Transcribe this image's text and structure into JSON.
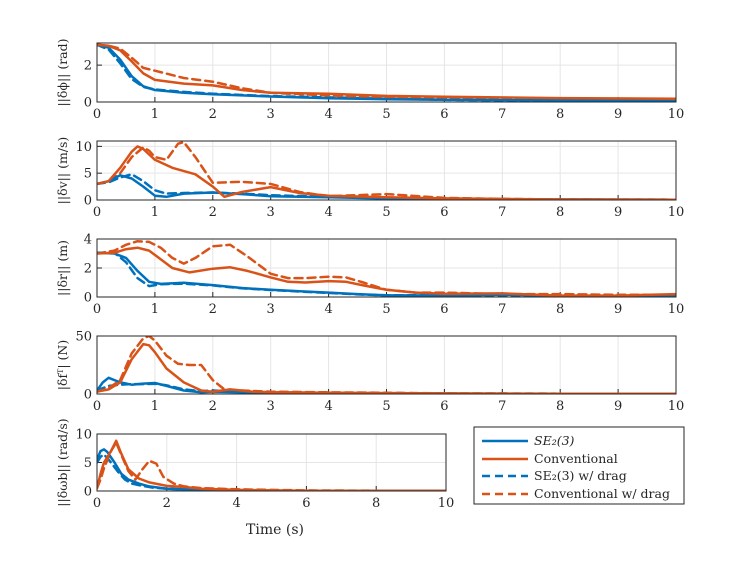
{
  "colors": {
    "se23": "#0072BD",
    "conventional": "#D95319",
    "axis": "#262626",
    "grid": "#E5E5E5"
  },
  "xlabel": "Time (s)",
  "legend": {
    "placement": "bottom-right",
    "entries": [
      {
        "label": "SE₂(3)",
        "color": "#0072BD",
        "dash": false
      },
      {
        "label": "Conventional",
        "color": "#D95319",
        "dash": false
      },
      {
        "label": "SE₂(3) w/ drag",
        "color": "#0072BD",
        "dash": true
      },
      {
        "label": "Conventional w/ drag",
        "color": "#D95319",
        "dash": true
      }
    ]
  },
  "chart_data": [
    {
      "type": "line",
      "ylabel": "||δϕ|| (rad)",
      "xlim": [
        0,
        10
      ],
      "ylim": [
        0,
        3.2
      ],
      "xticks": [
        "0",
        "1",
        "2",
        "3",
        "4",
        "5",
        "6",
        "7",
        "8",
        "9",
        "10"
      ],
      "yticks": [
        "0",
        "2"
      ],
      "ytickvals": [
        0,
        2
      ],
      "series": [
        {
          "name": "SE2(3)",
          "x": [
            0,
            0.2,
            0.4,
            0.6,
            0.8,
            1.0,
            1.5,
            2.0,
            3.0,
            4.0,
            5.0,
            6.0,
            8.0,
            10.0
          ],
          "y": [
            3.1,
            2.95,
            2.3,
            1.4,
            0.85,
            0.65,
            0.5,
            0.42,
            0.3,
            0.2,
            0.15,
            0.12,
            0.09,
            0.07
          ]
        },
        {
          "name": "Conventional",
          "x": [
            0,
            0.2,
            0.4,
            0.6,
            0.8,
            1.0,
            1.5,
            2.0,
            2.5,
            3.0,
            4.0,
            5.0,
            6.0,
            8.0,
            10.0
          ],
          "y": [
            3.1,
            3.05,
            2.8,
            2.2,
            1.55,
            1.2,
            1.0,
            0.9,
            0.65,
            0.5,
            0.45,
            0.33,
            0.28,
            0.21,
            0.18
          ]
        },
        {
          "name": "SE2(3) w/ drag",
          "x": [
            0,
            0.2,
            0.4,
            0.6,
            0.8,
            1.0,
            1.5,
            2.0,
            3.0,
            4.0,
            5.0,
            6.0,
            8.0,
            10.0
          ],
          "y": [
            3.1,
            2.85,
            2.1,
            1.25,
            0.82,
            0.68,
            0.55,
            0.45,
            0.32,
            0.25,
            0.18,
            0.12,
            0.07,
            0.05
          ]
        },
        {
          "name": "Conventional w/ drag",
          "x": [
            0,
            0.2,
            0.4,
            0.6,
            0.8,
            1.0,
            1.5,
            2.0,
            2.5,
            3.0,
            4.0,
            5.0,
            6.0,
            8.0,
            10.0
          ],
          "y": [
            3.1,
            3.05,
            2.9,
            2.4,
            1.85,
            1.7,
            1.3,
            1.1,
            0.75,
            0.5,
            0.35,
            0.25,
            0.18,
            0.12,
            0.1
          ]
        }
      ]
    },
    {
      "type": "line",
      "ylabel": "||δv|| (m/s)",
      "xlim": [
        0,
        10
      ],
      "ylim": [
        0,
        11
      ],
      "xticks": [
        "0",
        "1",
        "2",
        "3",
        "4",
        "5",
        "6",
        "7",
        "8",
        "9",
        "10"
      ],
      "yticks": [
        "0",
        "5",
        "10"
      ],
      "ytickvals": [
        0,
        5,
        10
      ],
      "series": [
        {
          "name": "SE2(3)",
          "x": [
            0,
            0.2,
            0.4,
            0.6,
            0.8,
            1.0,
            1.2,
            1.5,
            2.0,
            2.5,
            3.0,
            4.0,
            5.0,
            6.0,
            8.0,
            10.0
          ],
          "y": [
            3,
            3.5,
            4.6,
            4,
            2.5,
            0.8,
            0.6,
            1.2,
            1.4,
            1.1,
            0.7,
            0.5,
            0.3,
            0.2,
            0.1,
            0.05
          ]
        },
        {
          "name": "Conventional",
          "x": [
            0,
            0.2,
            0.4,
            0.6,
            0.7,
            0.8,
            1.0,
            1.3,
            1.7,
            2.0,
            2.2,
            2.5,
            3.0,
            3.5,
            4.0,
            5.0,
            6.0,
            7.0,
            8.0,
            10.0
          ],
          "y": [
            3,
            3.5,
            6,
            9,
            10,
            9.5,
            7.5,
            6,
            4.8,
            2.5,
            0.6,
            1.5,
            2.4,
            1.3,
            0.8,
            0.5,
            0.3,
            0.2,
            0.1,
            0.05
          ]
        },
        {
          "name": "SE2(3) w/ drag",
          "x": [
            0,
            0.2,
            0.4,
            0.6,
            0.8,
            1.0,
            1.2,
            1.5,
            2.0,
            2.5,
            3.0,
            4.0,
            5.0,
            6.0,
            8.0,
            10.0
          ],
          "y": [
            3,
            3.3,
            4.2,
            4.8,
            3.5,
            1.8,
            1.2,
            1.3,
            1.4,
            1.2,
            0.9,
            0.6,
            0.4,
            0.2,
            0.1,
            0.05
          ]
        },
        {
          "name": "Conventional w/ drag",
          "x": [
            0,
            0.2,
            0.4,
            0.6,
            0.8,
            0.9,
            1.0,
            1.2,
            1.4,
            1.5,
            1.7,
            2.0,
            2.5,
            3.0,
            3.5,
            4.0,
            5.0,
            6.0,
            7.0,
            8.0,
            10.0
          ],
          "y": [
            3,
            3.5,
            5,
            8,
            9.8,
            9.2,
            8,
            7.5,
            10.5,
            10.8,
            8,
            3.2,
            3.4,
            3,
            1.5,
            0.7,
            1.1,
            0.4,
            0.2,
            0.1,
            0.05
          ]
        }
      ]
    },
    {
      "type": "line",
      "ylabel": "||δr|| (m)",
      "xlim": [
        0,
        10
      ],
      "ylim": [
        0,
        4
      ],
      "xticks": [
        "0",
        "1",
        "2",
        "3",
        "4",
        "5",
        "6",
        "7",
        "8",
        "9",
        "10"
      ],
      "yticks": [
        "0",
        "2",
        "4"
      ],
      "ytickvals": [
        0,
        2,
        4
      ],
      "series": [
        {
          "name": "SE2(3)",
          "x": [
            0,
            0.3,
            0.5,
            0.7,
            0.9,
            1.1,
            1.5,
            2.0,
            2.5,
            3.0,
            3.5,
            4.0,
            4.5,
            5.0,
            6.0,
            7.0,
            8.0,
            9.0,
            10.0
          ],
          "y": [
            3.05,
            3,
            2.7,
            1.8,
            1.05,
            0.9,
            0.98,
            0.82,
            0.62,
            0.5,
            0.4,
            0.3,
            0.2,
            0.12,
            0.1,
            0.16,
            0.08,
            0.05,
            0.08
          ]
        },
        {
          "name": "Conventional",
          "x": [
            0,
            0.3,
            0.5,
            0.7,
            0.9,
            1.1,
            1.3,
            1.6,
            2.0,
            2.3,
            2.6,
            3.0,
            3.3,
            3.6,
            4.0,
            4.3,
            4.6,
            5.0,
            5.5,
            6.0,
            7.0,
            8.0,
            9.0,
            10.0
          ],
          "y": [
            3,
            3.05,
            3.3,
            3.4,
            3.2,
            2.6,
            2,
            1.7,
            1.95,
            2.05,
            1.8,
            1.35,
            1.05,
            1,
            1.1,
            1.05,
            0.8,
            0.5,
            0.3,
            0.22,
            0.25,
            0.1,
            0.1,
            0.2
          ]
        },
        {
          "name": "SE2(3) w/ drag",
          "x": [
            0,
            0.3,
            0.5,
            0.7,
            0.9,
            1.1,
            1.5,
            2.0,
            2.5,
            3.0,
            3.5,
            4.0,
            4.5,
            5.0,
            6.0,
            7.0,
            8.0,
            9.0,
            10.0
          ],
          "y": [
            3.05,
            3.05,
            2.4,
            1.3,
            0.75,
            0.88,
            0.92,
            0.8,
            0.6,
            0.48,
            0.38,
            0.28,
            0.18,
            0.12,
            0.12,
            0.12,
            0.1,
            0.1,
            0.1
          ]
        },
        {
          "name": "Conventional w/ drag",
          "x": [
            0,
            0.3,
            0.5,
            0.7,
            0.9,
            1.1,
            1.3,
            1.5,
            1.7,
            2.0,
            2.3,
            2.6,
            3.0,
            3.3,
            3.6,
            4.0,
            4.3,
            4.6,
            5.0,
            5.5,
            6.0,
            7.0,
            8.0,
            9.0,
            10.0
          ],
          "y": [
            3,
            3.2,
            3.6,
            3.85,
            3.8,
            3.4,
            2.7,
            2.3,
            2.7,
            3.5,
            3.6,
            2.8,
            1.6,
            1.3,
            1.3,
            1.4,
            1.35,
            1,
            0.5,
            0.3,
            0.3,
            0.2,
            0.2,
            0.15,
            0.15
          ]
        }
      ]
    },
    {
      "type": "line",
      "ylabel": "|δfᵀ| (N)",
      "xlim": [
        0,
        10
      ],
      "ylim": [
        0,
        50
      ],
      "xticks": [
        "0",
        "1",
        "2",
        "3",
        "4",
        "5",
        "6",
        "7",
        "8",
        "9",
        "10"
      ],
      "yticks": [
        "0",
        "50"
      ],
      "ytickvals": [
        0,
        50
      ],
      "series": [
        {
          "name": "SE2(3)",
          "x": [
            0,
            0.1,
            0.2,
            0.4,
            0.6,
            0.8,
            1.0,
            1.2,
            1.5,
            1.8,
            2.0,
            2.5,
            3.0,
            4.0,
            5.0,
            6.0,
            8.0,
            10.0
          ],
          "y": [
            3,
            10,
            14,
            10,
            8,
            9,
            9.5,
            7,
            3,
            1.5,
            2,
            1.5,
            1,
            0.8,
            0.5,
            0.3,
            0.2,
            0.1
          ]
        },
        {
          "name": "Conventional",
          "x": [
            0,
            0.2,
            0.4,
            0.6,
            0.8,
            0.9,
            1.0,
            1.2,
            1.5,
            1.8,
            2.0,
            2.3,
            2.7,
            3.0,
            4.0,
            5.0,
            6.0,
            8.0,
            10.0
          ],
          "y": [
            2,
            4,
            10,
            30,
            43,
            42,
            36,
            22,
            10,
            3,
            2,
            4,
            2,
            1.5,
            1,
            0.8,
            0.5,
            0.3,
            0.2
          ]
        },
        {
          "name": "SE2(3) w/ drag",
          "x": [
            0,
            0.2,
            0.4,
            0.6,
            0.8,
            1.0,
            1.2,
            1.5,
            1.8,
            2.0,
            2.5,
            3.0,
            4.0,
            5.0,
            6.0,
            8.0,
            10.0
          ],
          "y": [
            3,
            7,
            8,
            8.5,
            8.5,
            8.8,
            7.5,
            4,
            2.5,
            3,
            2,
            1.5,
            1,
            0.8,
            0.5,
            0.3,
            0.2
          ]
        },
        {
          "name": "Conventional w/ drag",
          "x": [
            0,
            0.2,
            0.4,
            0.6,
            0.8,
            0.9,
            1.0,
            1.2,
            1.4,
            1.6,
            1.8,
            2.0,
            2.2,
            2.5,
            3.0,
            4.0,
            5.0,
            6.0,
            8.0,
            10.0
          ],
          "y": [
            2,
            5,
            12,
            35,
            48,
            50,
            46,
            33,
            26,
            25,
            25,
            12,
            4,
            3,
            2,
            1.5,
            1,
            0.5,
            0.3,
            0.2
          ]
        }
      ]
    },
    {
      "type": "line",
      "ylabel": "||δωb|| (rad/s)",
      "xlim": [
        0,
        10
      ],
      "ylim": [
        0,
        10
      ],
      "xticks": [
        "0",
        "2",
        "4",
        "6",
        "8",
        "10"
      ],
      "yticks": [
        "0",
        "5",
        "10"
      ],
      "ytickvals": [
        0,
        5,
        10
      ],
      "series": [
        {
          "name": "SE2(3)",
          "x": [
            0,
            0.1,
            0.2,
            0.3,
            0.5,
            0.7,
            0.9,
            1.2,
            1.5,
            2.0,
            3.0,
            4.0,
            5.0,
            6.0,
            8.0,
            10.0
          ],
          "y": [
            5.5,
            7,
            7.3,
            6.8,
            5,
            3,
            2,
            1.3,
            0.8,
            0.4,
            0.2,
            0.1,
            0.05,
            0.03,
            0.02,
            0.01
          ]
        },
        {
          "name": "Conventional",
          "x": [
            0,
            0.1,
            0.2,
            0.4,
            0.55,
            0.7,
            0.9,
            1.2,
            1.5,
            2.0,
            2.5,
            3.0,
            4.0,
            5.0,
            6.0,
            8.0,
            10.0
          ],
          "y": [
            0.5,
            3,
            5,
            7,
            8.8,
            6.5,
            3.8,
            2.2,
            1.5,
            0.9,
            0.7,
            0.4,
            0.2,
            0.1,
            0.05,
            0.02,
            0.01
          ]
        },
        {
          "name": "SE2(3) w/ drag",
          "x": [
            0,
            0.1,
            0.2,
            0.4,
            0.6,
            0.8,
            1.0,
            1.3,
            1.6,
            2.0,
            3.0,
            4.0,
            5.0,
            6.0,
            8.0,
            10.0
          ],
          "y": [
            5,
            6,
            6.4,
            5,
            3.4,
            2,
            1.3,
            0.9,
            0.6,
            0.4,
            0.2,
            0.1,
            0.05,
            0.03,
            0.02,
            0.01
          ]
        },
        {
          "name": "Conventional w/ drag",
          "x": [
            0,
            0.1,
            0.2,
            0.4,
            0.55,
            0.7,
            0.9,
            1.1,
            1.3,
            1.5,
            1.7,
            1.9,
            2.2,
            2.5,
            3.0,
            4.0,
            5.0,
            6.0,
            8.0,
            10.0
          ],
          "y": [
            0.5,
            2,
            4,
            7,
            8.5,
            6.3,
            3.5,
            2,
            3.8,
            5.3,
            4.8,
            2.5,
            1.3,
            0.8,
            0.5,
            0.3,
            0.2,
            0.1,
            0.05,
            0.02
          ]
        }
      ]
    }
  ]
}
